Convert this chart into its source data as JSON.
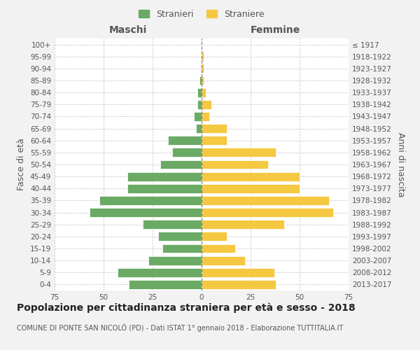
{
  "age_groups": [
    "0-4",
    "5-9",
    "10-14",
    "15-19",
    "20-24",
    "25-29",
    "30-34",
    "35-39",
    "40-44",
    "45-49",
    "50-54",
    "55-59",
    "60-64",
    "65-69",
    "70-74",
    "75-79",
    "80-84",
    "85-89",
    "90-94",
    "95-99",
    "100+"
  ],
  "birth_years": [
    "2013-2017",
    "2008-2012",
    "2003-2007",
    "1998-2002",
    "1993-1997",
    "1988-1992",
    "1983-1987",
    "1978-1982",
    "1973-1977",
    "1968-1972",
    "1963-1967",
    "1958-1962",
    "1953-1957",
    "1948-1952",
    "1943-1947",
    "1938-1942",
    "1933-1937",
    "1928-1932",
    "1923-1927",
    "1918-1922",
    "≤ 1917"
  ],
  "males": [
    37,
    43,
    27,
    20,
    22,
    30,
    57,
    52,
    38,
    38,
    21,
    15,
    17,
    3,
    4,
    2,
    2,
    1,
    0,
    0,
    0
  ],
  "females": [
    38,
    37,
    22,
    17,
    13,
    42,
    67,
    65,
    50,
    50,
    34,
    38,
    13,
    13,
    4,
    5,
    2,
    1,
    1,
    1,
    0
  ],
  "male_color": "#6aaa64",
  "female_color": "#f5c842",
  "bar_edge_color": "white",
  "background_color": "#f2f2f2",
  "plot_bg_color": "#ffffff",
  "grid_color": "#cccccc",
  "xlim": 75,
  "title": "Popolazione per cittadinanza straniera per età e sesso - 2018",
  "subtitle": "COMUNE DI PONTE SAN NICOLÒ (PD) - Dati ISTAT 1° gennaio 2018 - Elaborazione TUTTITALIA.IT",
  "xlabel_left": "Maschi",
  "xlabel_right": "Femmine",
  "ylabel_left": "Fasce di età",
  "ylabel_right": "Anni di nascita",
  "legend_male": "Stranieri",
  "legend_female": "Straniere",
  "title_fontsize": 10,
  "subtitle_fontsize": 7,
  "label_fontsize": 9,
  "tick_fontsize": 7.5
}
